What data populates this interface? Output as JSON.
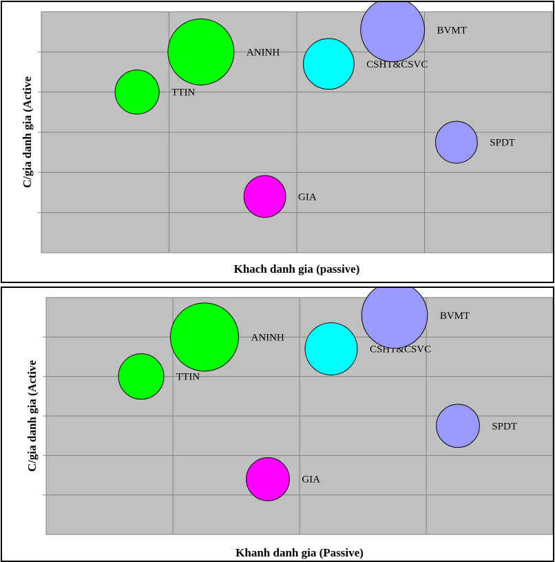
{
  "colors": {
    "plot_bg": "#c0c0c0",
    "grid": "#808080",
    "green": "#00ff00",
    "cyan": "#00ffff",
    "lavender": "#9999ff",
    "magenta": "#ff00ff"
  },
  "chart_data": [
    {
      "type": "scatter",
      "subtype": "bubble",
      "xlabel": "Khach danh gia (passive)",
      "ylabel": "C/gia danh gia (Active",
      "grid": true,
      "xlim": [
        0,
        4
      ],
      "ylim": [
        0,
        6
      ],
      "points": [
        {
          "label": "TTIN",
          "x": 0.75,
          "y": 4.0,
          "size": 1.0,
          "color": "#00ff00"
        },
        {
          "label": "ANINH",
          "x": 1.25,
          "y": 5.0,
          "size": 1.5,
          "color": "#00ff00"
        },
        {
          "label": "CSHT&CSVC",
          "x": 2.25,
          "y": 4.7,
          "size": 1.15,
          "color": "#00ffff"
        },
        {
          "label": "BVMT",
          "x": 2.75,
          "y": 5.55,
          "size": 1.45,
          "color": "#9999ff"
        },
        {
          "label": "SPDT",
          "x": 3.25,
          "y": 2.75,
          "size": 0.95,
          "color": "#9999ff"
        },
        {
          "label": "GIA",
          "x": 1.75,
          "y": 1.4,
          "size": 0.95,
          "color": "#ff00ff"
        }
      ]
    },
    {
      "type": "scatter",
      "subtype": "bubble",
      "xlabel": "Khanh danh gia (Passive)",
      "ylabel": "C/gia danh gia (Active",
      "grid": true,
      "xlim": [
        0,
        4
      ],
      "ylim": [
        0,
        6
      ],
      "points": [
        {
          "label": "TTIN",
          "x": 0.75,
          "y": 4.0,
          "size": 1.0,
          "color": "#00ff00"
        },
        {
          "label": "ANINH",
          "x": 1.25,
          "y": 5.0,
          "size": 1.5,
          "color": "#00ff00"
        },
        {
          "label": "CSHT&CSVC",
          "x": 2.25,
          "y": 4.7,
          "size": 1.15,
          "color": "#00ffff"
        },
        {
          "label": "BVMT",
          "x": 2.75,
          "y": 5.55,
          "size": 1.45,
          "color": "#9999ff"
        },
        {
          "label": "SPDT",
          "x": 3.25,
          "y": 2.75,
          "size": 0.95,
          "color": "#9999ff"
        },
        {
          "label": "GIA",
          "x": 1.75,
          "y": 1.4,
          "size": 0.95,
          "color": "#ff00ff"
        }
      ]
    }
  ]
}
